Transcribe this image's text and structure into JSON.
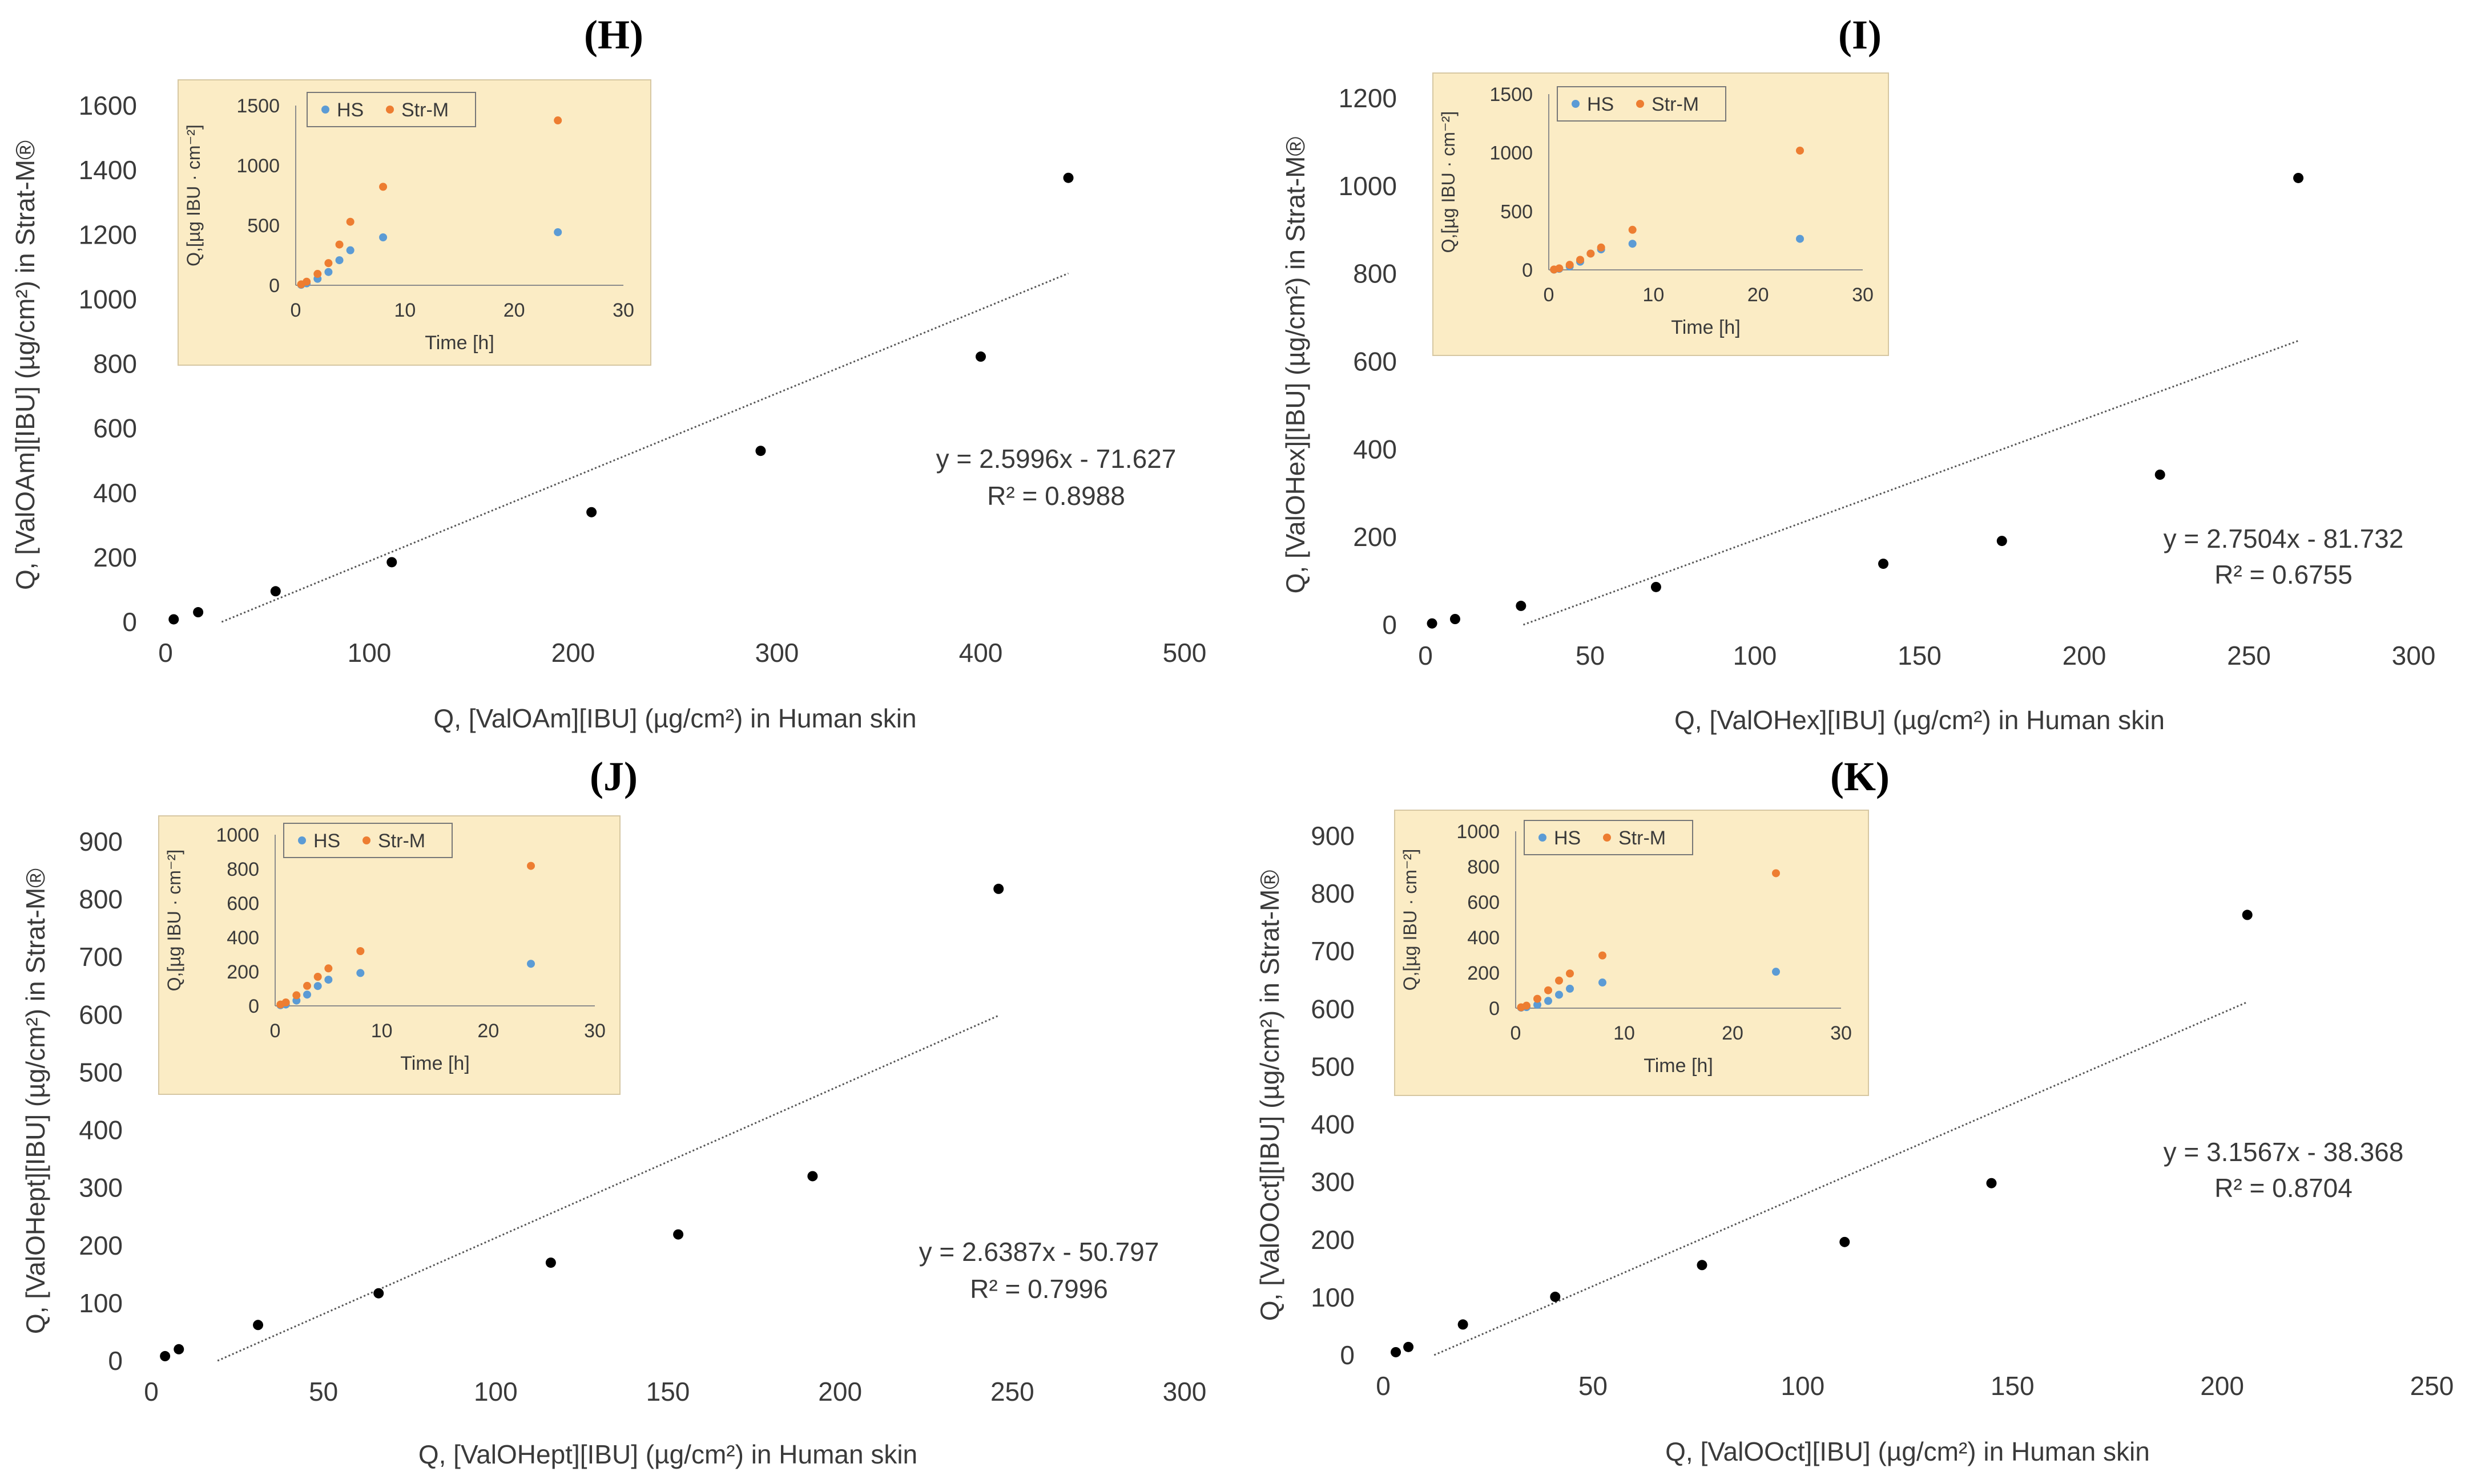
{
  "panels": [
    {
      "label": "(H)",
      "xlabel": "Q, [ValOAm][IBU] (µg/cm²) in Human skin",
      "ylabel": "Q, [ValOAm][IBU] (µg/cm²) in Strat-M®",
      "xticks": [
        0,
        100,
        200,
        300,
        400,
        500
      ],
      "yticks": [
        0,
        200,
        400,
        600,
        800,
        1000,
        1200,
        1400,
        1600
      ],
      "equation": "y = 2.5996x - 71.627",
      "r2": "R² = 0.8988",
      "inset": {
        "ylabel": "Q,[µg IBU · cm⁻²]",
        "xlabel": "Time [h]",
        "xticks": [
          0,
          10,
          20,
          30
        ],
        "yticks": [
          0,
          500,
          1000,
          1500
        ],
        "legend": [
          "HS",
          "Str-M"
        ]
      }
    },
    {
      "label": "(I)",
      "xlabel": "Q, [ValOHex][IBU] (µg/cm²) in Human skin",
      "ylabel": "Q, [ValOHex][IBU] (µg/cm²) in Strat-M®",
      "xticks": [
        0,
        50,
        100,
        150,
        200,
        250,
        300
      ],
      "yticks": [
        0,
        200,
        400,
        600,
        800,
        1000,
        1200
      ],
      "equation": "y = 2.7504x - 81.732",
      "r2": "R² = 0.6755",
      "inset": {
        "ylabel": "Q,[µg IBU · cm⁻²]",
        "xlabel": "Time [h]",
        "xticks": [
          0,
          10,
          20,
          30
        ],
        "yticks": [
          0,
          500,
          1000,
          1500
        ],
        "legend": [
          "HS",
          "Str-M"
        ]
      }
    },
    {
      "label": "(J)",
      "xlabel": "Q, [ValOHept][IBU] (µg/cm²) in Human skin",
      "ylabel": "Q, [ValOHept][IBU] (µg/cm²) in Strat-M®",
      "xticks": [
        0,
        50,
        100,
        150,
        200,
        250,
        300
      ],
      "yticks": [
        0,
        100,
        200,
        300,
        400,
        500,
        600,
        700,
        800,
        900
      ],
      "equation": "y = 2.6387x - 50.797",
      "r2": "R² = 0.7996",
      "inset": {
        "ylabel": "Q,[µg IBU · cm⁻²]",
        "xlabel": "Time [h]",
        "xticks": [
          0,
          10,
          20,
          30
        ],
        "yticks": [
          0,
          200,
          400,
          600,
          800,
          1000
        ],
        "legend": [
          "HS",
          "Str-M"
        ]
      }
    },
    {
      "label": "(K)",
      "xlabel": "Q, [ValOOct][IBU] (µg/cm²) in Human skin",
      "ylabel": "Q, [ValOOct][IBU] (µg/cm²) in Strat-M®",
      "xticks": [
        0,
        50,
        100,
        150,
        200,
        250
      ],
      "yticks": [
        0,
        100,
        200,
        300,
        400,
        500,
        600,
        700,
        800,
        900
      ],
      "equation": "y = 3.1567x - 38.368",
      "r2": "R² = 0.8704",
      "inset": {
        "ylabel": "Q,[µg IBU · cm⁻²]",
        "xlabel": "Time [h]",
        "xticks": [
          0,
          10,
          20,
          30
        ],
        "yticks": [
          0,
          200,
          400,
          600,
          800,
          1000
        ],
        "legend": [
          "HS",
          "Str-M"
        ]
      }
    }
  ],
  "colors": {
    "point": "#000000",
    "trendline": "#555555",
    "inset_background": "#fbecc5",
    "inset_border": "#d6c7a2",
    "hs": "#5b9bd5",
    "strm": "#ed7d31",
    "axis": "#8c8c8c"
  },
  "chart_data": [
    {
      "type": "scatter",
      "title": "(H)",
      "xlabel": "Q, [ValOAm][IBU] (µg/cm²) in Human skin",
      "ylabel": "Q, [ValOAm][IBU] (µg/cm²) in Strat-M®",
      "xlim": [
        0,
        500
      ],
      "ylim": [
        0,
        1600
      ],
      "series": [
        {
          "x": [
            4,
            16,
            54,
            111,
            209,
            292,
            400,
            443
          ],
          "y": [
            8,
            30,
            95,
            185,
            340,
            530,
            822,
            1376
          ]
        }
      ],
      "trendline": {
        "slope": 2.5996,
        "intercept": -71.627,
        "r2": 0.8988
      },
      "inset": {
        "type": "scatter",
        "xlabel": "Time [h]",
        "ylabel": "Q,[µg IBU · cm⁻²]",
        "xlim": [
          0,
          30
        ],
        "ylim": [
          0,
          1500
        ],
        "series": [
          {
            "name": "HS",
            "x": [
              0.5,
              1,
              2,
              3,
              4,
              5,
              8,
              24
            ],
            "y": [
              4,
              16,
              54,
              111,
              209,
              292,
              400,
              443
            ]
          },
          {
            "name": "Str-M",
            "x": [
              0.5,
              1,
              2,
              3,
              4,
              5,
              8,
              24
            ],
            "y": [
              8,
              30,
              95,
              185,
              340,
              530,
              822,
              1376
            ]
          }
        ]
      }
    },
    {
      "type": "scatter",
      "title": "(I)",
      "xlabel": "Q, [ValOHex][IBU] (µg/cm²) in Human skin",
      "ylabel": "Q, [ValOHex][IBU] (µg/cm²) in Strat-M®",
      "xlim": [
        0,
        300
      ],
      "ylim": [
        0,
        1200
      ],
      "series": [
        {
          "x": [
            2,
            9,
            29,
            70,
            139,
            175,
            223,
            265
          ],
          "y": [
            3,
            13,
            43,
            86,
            139,
            191,
            342,
            1018
          ]
        }
      ],
      "trendline": {
        "slope": 2.7504,
        "intercept": -81.732,
        "r2": 0.6755
      },
      "inset": {
        "type": "scatter",
        "xlabel": "Time [h]",
        "ylabel": "Q,[µg IBU · cm⁻²]",
        "xlim": [
          0,
          30
        ],
        "ylim": [
          0,
          1500
        ],
        "series": [
          {
            "name": "HS",
            "x": [
              0.5,
              1,
              2,
              3,
              4,
              5,
              8,
              24
            ],
            "y": [
              2,
              9,
              29,
              70,
              139,
              175,
              223,
              265
            ]
          },
          {
            "name": "Str-M",
            "x": [
              0.5,
              1,
              2,
              3,
              4,
              5,
              8,
              24
            ],
            "y": [
              3,
              13,
              43,
              86,
              139,
              191,
              342,
              1018
            ]
          }
        ]
      }
    },
    {
      "type": "scatter",
      "title": "(J)",
      "xlabel": "Q, [ValOHept][IBU] (µg/cm²) in Human skin",
      "ylabel": "Q, [ValOHept][IBU] (µg/cm²) in Strat-M®",
      "xlim": [
        0,
        300
      ],
      "ylim": [
        0,
        900
      ],
      "series": [
        {
          "x": [
            4,
            8,
            31,
            66,
            116,
            153,
            192,
            246
          ],
          "y": [
            8,
            20,
            62,
            117,
            170,
            219,
            320,
            818
          ]
        }
      ],
      "trendline": {
        "slope": 2.6387,
        "intercept": -50.797,
        "r2": 0.7996
      },
      "inset": {
        "type": "scatter",
        "xlabel": "Time [h]",
        "ylabel": "Q,[µg IBU · cm⁻²]",
        "xlim": [
          0,
          30
        ],
        "ylim": [
          0,
          1000
        ],
        "series": [
          {
            "name": "HS",
            "x": [
              0.5,
              1,
              2,
              3,
              4,
              5,
              8,
              24
            ],
            "y": [
              4,
              8,
              31,
              66,
              116,
              153,
              192,
              246
            ]
          },
          {
            "name": "Str-M",
            "x": [
              0.5,
              1,
              2,
              3,
              4,
              5,
              8,
              24
            ],
            "y": [
              8,
              20,
              62,
              117,
              170,
              219,
              320,
              818
            ]
          }
        ]
      }
    },
    {
      "type": "scatter",
      "title": "(K)",
      "xlabel": "Q, [ValOOct][IBU] (µg/cm²) in Human skin",
      "ylabel": "Q, [ValOOct][IBU] (µg/cm²) in Strat-M®",
      "xlim": [
        0,
        250
      ],
      "ylim": [
        0,
        900
      ],
      "series": [
        {
          "x": [
            3,
            6,
            19,
            41,
            76,
            110,
            145,
            206
          ],
          "y": [
            5,
            14,
            53,
            101,
            156,
            196,
            298,
            763
          ]
        }
      ],
      "trendline": {
        "slope": 3.1567,
        "intercept": -38.368,
        "r2": 0.8704
      },
      "inset": {
        "type": "scatter",
        "xlabel": "Time [h]",
        "ylabel": "Q,[µg IBU · cm⁻²]",
        "xlim": [
          0,
          30
        ],
        "ylim": [
          0,
          1000
        ],
        "series": [
          {
            "name": "HS",
            "x": [
              0.5,
              1,
              2,
              3,
              4,
              5,
              8,
              24
            ],
            "y": [
              3,
              6,
              19,
              41,
              76,
              110,
              145,
              206
            ]
          },
          {
            "name": "Str-M",
            "x": [
              0.5,
              1,
              2,
              3,
              4,
              5,
              8,
              24
            ],
            "y": [
              5,
              14,
              53,
              101,
              156,
              196,
              298,
              763
            ]
          }
        ]
      }
    }
  ]
}
